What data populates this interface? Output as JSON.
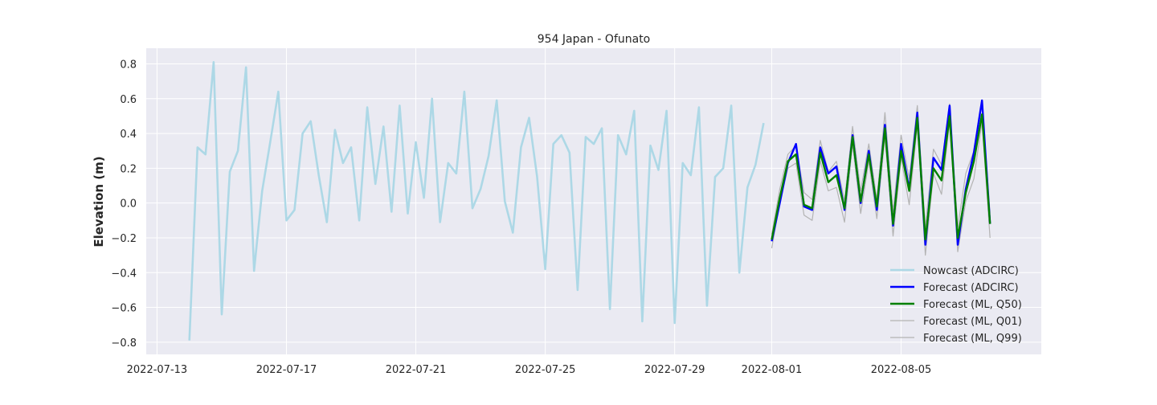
{
  "chart_data": {
    "type": "line",
    "title": "954 Japan - Ofunato",
    "xlabel": "",
    "ylabel": "Elevation (m)",
    "x_type": "date",
    "xlim": [
      "2022-07-12T16:00",
      "2022-08-09T08:00"
    ],
    "ylim": [
      -0.87,
      0.89
    ],
    "x_ticks": [
      "2022-07-13",
      "2022-07-17",
      "2022-07-21",
      "2022-07-25",
      "2022-07-29",
      "2022-08-01",
      "2022-08-05"
    ],
    "y_ticks": [
      -0.8,
      -0.6,
      -0.4,
      -0.2,
      0.0,
      0.2,
      0.4,
      0.6,
      0.8
    ],
    "y_tick_labels": [
      "−0.8",
      "−0.6",
      "−0.4",
      "−0.2",
      "0.0",
      "0.2",
      "0.4",
      "0.6",
      "0.8"
    ],
    "grid": true,
    "legend_position": "bottom-right",
    "series": [
      {
        "name": "Nowcast (ADCIRC)",
        "color": "#add8e6",
        "x": [
          "2022-07-14T00:00",
          "2022-07-14T06:00",
          "2022-07-14T12:00",
          "2022-07-14T18:00",
          "2022-07-15T00:00",
          "2022-07-15T06:00",
          "2022-07-15T12:00",
          "2022-07-15T18:00",
          "2022-07-16T00:00",
          "2022-07-16T06:00",
          "2022-07-16T12:00",
          "2022-07-16T18:00",
          "2022-07-17T00:00",
          "2022-07-17T06:00",
          "2022-07-17T12:00",
          "2022-07-17T18:00",
          "2022-07-18T00:00",
          "2022-07-18T06:00",
          "2022-07-18T12:00",
          "2022-07-18T18:00",
          "2022-07-19T00:00",
          "2022-07-19T06:00",
          "2022-07-19T12:00",
          "2022-07-19T18:00",
          "2022-07-20T00:00",
          "2022-07-20T06:00",
          "2022-07-20T12:00",
          "2022-07-20T18:00",
          "2022-07-21T00:00",
          "2022-07-21T06:00",
          "2022-07-21T12:00",
          "2022-07-21T18:00",
          "2022-07-22T00:00",
          "2022-07-22T06:00",
          "2022-07-22T12:00",
          "2022-07-22T18:00",
          "2022-07-23T00:00",
          "2022-07-23T06:00",
          "2022-07-23T12:00",
          "2022-07-23T18:00",
          "2022-07-24T00:00",
          "2022-07-24T06:00",
          "2022-07-24T12:00",
          "2022-07-24T18:00",
          "2022-07-25T00:00",
          "2022-07-25T06:00",
          "2022-07-25T12:00",
          "2022-07-25T18:00",
          "2022-07-26T00:00",
          "2022-07-26T06:00",
          "2022-07-26T12:00",
          "2022-07-26T18:00",
          "2022-07-27T00:00",
          "2022-07-27T06:00",
          "2022-07-27T12:00",
          "2022-07-27T18:00",
          "2022-07-28T00:00",
          "2022-07-28T06:00",
          "2022-07-28T12:00",
          "2022-07-28T18:00",
          "2022-07-29T00:00",
          "2022-07-29T06:00",
          "2022-07-29T12:00",
          "2022-07-29T18:00",
          "2022-07-30T00:00",
          "2022-07-30T06:00",
          "2022-07-30T12:00",
          "2022-07-30T18:00",
          "2022-07-31T00:00",
          "2022-07-31T06:00",
          "2022-07-31T12:00",
          "2022-07-31T18:00"
        ],
        "values": [
          -0.79,
          0.32,
          0.28,
          0.81,
          -0.64,
          0.18,
          0.3,
          0.78,
          -0.39,
          0.07,
          0.35,
          0.64,
          -0.1,
          -0.04,
          0.4,
          0.47,
          0.16,
          -0.11,
          0.42,
          0.23,
          0.32,
          -0.1,
          0.55,
          0.11,
          0.44,
          -0.05,
          0.56,
          -0.06,
          0.35,
          0.03,
          0.6,
          -0.11,
          0.23,
          0.17,
          0.64,
          -0.03,
          0.08,
          0.27,
          0.59,
          0.01,
          -0.17,
          0.32,
          0.49,
          0.15,
          -0.38,
          0.34,
          0.39,
          0.29,
          -0.5,
          0.38,
          0.34,
          0.43,
          -0.61,
          0.39,
          0.28,
          0.53,
          -0.68,
          0.33,
          0.19,
          0.53,
          -0.69,
          0.23,
          0.16,
          0.55,
          -0.59,
          0.15,
          0.2,
          0.56,
          -0.4,
          0.09,
          0.22,
          0.46
        ]
      },
      {
        "name": "Forecast (ADCIRC)",
        "color": "#0000ff",
        "x": [
          "2022-08-01T00:00",
          "2022-08-01T06:00",
          "2022-08-01T12:00",
          "2022-08-01T18:00",
          "2022-08-02T00:00",
          "2022-08-02T06:00",
          "2022-08-02T12:00",
          "2022-08-02T18:00",
          "2022-08-03T00:00",
          "2022-08-03T06:00",
          "2022-08-03T12:00",
          "2022-08-03T18:00",
          "2022-08-04T00:00",
          "2022-08-04T06:00",
          "2022-08-04T12:00",
          "2022-08-04T18:00",
          "2022-08-05T00:00",
          "2022-08-05T06:00",
          "2022-08-05T12:00",
          "2022-08-05T18:00",
          "2022-08-06T00:00",
          "2022-08-06T06:00",
          "2022-08-06T12:00",
          "2022-08-06T18:00",
          "2022-08-07T00:00",
          "2022-08-07T06:00",
          "2022-08-07T12:00",
          "2022-08-07T18:00"
        ],
        "values": [
          -0.22,
          0.0,
          0.23,
          0.34,
          -0.02,
          -0.04,
          0.32,
          0.17,
          0.21,
          -0.04,
          0.39,
          0.0,
          0.3,
          -0.04,
          0.45,
          -0.13,
          0.34,
          0.08,
          0.52,
          -0.24,
          0.26,
          0.19,
          0.56,
          -0.24,
          0.08,
          0.29,
          0.59,
          -0.12
        ]
      },
      {
        "name": "Forecast (ML, Q50)",
        "color": "#008000",
        "x": [
          "2022-08-01T00:00",
          "2022-08-01T06:00",
          "2022-08-01T12:00",
          "2022-08-01T18:00",
          "2022-08-02T00:00",
          "2022-08-02T06:00",
          "2022-08-02T12:00",
          "2022-08-02T18:00",
          "2022-08-03T00:00",
          "2022-08-03T06:00",
          "2022-08-03T12:00",
          "2022-08-03T18:00",
          "2022-08-04T00:00",
          "2022-08-04T06:00",
          "2022-08-04T12:00",
          "2022-08-04T18:00",
          "2022-08-05T00:00",
          "2022-08-05T06:00",
          "2022-08-05T12:00",
          "2022-08-05T18:00",
          "2022-08-06T00:00",
          "2022-08-06T06:00",
          "2022-08-06T12:00",
          "2022-08-06T18:00",
          "2022-08-07T00:00",
          "2022-08-07T06:00",
          "2022-08-07T12:00",
          "2022-08-07T18:00"
        ],
        "values": [
          -0.21,
          0.03,
          0.24,
          0.28,
          -0.01,
          -0.03,
          0.29,
          0.12,
          0.16,
          -0.03,
          0.38,
          0.01,
          0.28,
          -0.02,
          0.43,
          -0.12,
          0.3,
          0.07,
          0.49,
          -0.21,
          0.2,
          0.13,
          0.5,
          -0.2,
          0.06,
          0.24,
          0.51,
          -0.12
        ]
      },
      {
        "name": "Forecast (ML, Q01)",
        "color": "#b3b3b3",
        "x": [
          "2022-08-01T00:00",
          "2022-08-01T06:00",
          "2022-08-01T12:00",
          "2022-08-01T18:00",
          "2022-08-02T00:00",
          "2022-08-02T06:00",
          "2022-08-02T12:00",
          "2022-08-02T18:00",
          "2022-08-03T00:00",
          "2022-08-03T06:00",
          "2022-08-03T12:00",
          "2022-08-03T18:00",
          "2022-08-04T00:00",
          "2022-08-04T06:00",
          "2022-08-04T12:00",
          "2022-08-04T18:00",
          "2022-08-05T00:00",
          "2022-08-05T06:00",
          "2022-08-05T12:00",
          "2022-08-05T18:00",
          "2022-08-06T00:00",
          "2022-08-06T06:00",
          "2022-08-06T12:00",
          "2022-08-06T18:00",
          "2022-08-07T00:00",
          "2022-08-07T06:00",
          "2022-08-07T12:00",
          "2022-08-07T18:00"
        ],
        "values": [
          -0.26,
          0.0,
          0.2,
          0.23,
          -0.07,
          -0.1,
          0.24,
          0.07,
          0.09,
          -0.11,
          0.34,
          -0.06,
          0.24,
          -0.09,
          0.38,
          -0.19,
          0.26,
          -0.01,
          0.45,
          -0.3,
          0.17,
          0.05,
          0.47,
          -0.28,
          0.01,
          0.14,
          0.47,
          -0.2
        ]
      },
      {
        "name": "Forecast (ML, Q99)",
        "color": "#b3b3b3",
        "x": [
          "2022-08-01T00:00",
          "2022-08-01T06:00",
          "2022-08-01T12:00",
          "2022-08-01T18:00",
          "2022-08-02T00:00",
          "2022-08-02T06:00",
          "2022-08-02T12:00",
          "2022-08-02T18:00",
          "2022-08-03T00:00",
          "2022-08-03T06:00",
          "2022-08-03T12:00",
          "2022-08-03T18:00",
          "2022-08-04T00:00",
          "2022-08-04T06:00",
          "2022-08-04T12:00",
          "2022-08-04T18:00",
          "2022-08-05T00:00",
          "2022-08-05T06:00",
          "2022-08-05T12:00",
          "2022-08-05T18:00",
          "2022-08-06T00:00",
          "2022-08-06T06:00",
          "2022-08-06T12:00",
          "2022-08-06T18:00",
          "2022-08-07T00:00",
          "2022-08-07T06:00",
          "2022-08-07T12:00",
          "2022-08-07T18:00"
        ],
        "values": [
          -0.18,
          0.08,
          0.28,
          0.33,
          0.06,
          0.02,
          0.36,
          0.18,
          0.24,
          0.01,
          0.44,
          0.07,
          0.34,
          0.02,
          0.52,
          -0.05,
          0.39,
          0.14,
          0.56,
          -0.14,
          0.31,
          0.22,
          0.57,
          -0.14,
          0.17,
          0.3,
          0.58,
          -0.06
        ]
      }
    ]
  }
}
